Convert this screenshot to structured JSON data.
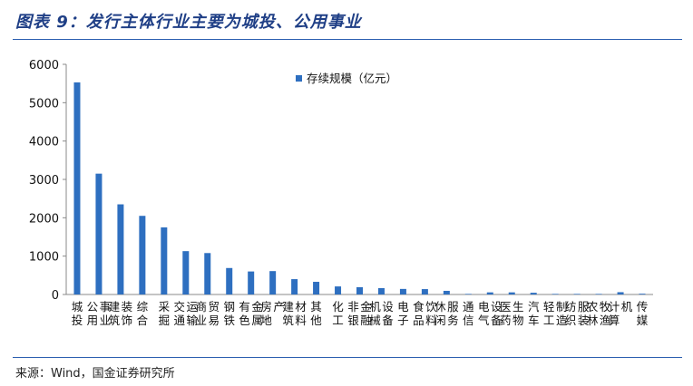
{
  "figure": {
    "title": "图表 9：发行主体行业主要为城投、公用事业",
    "source": "来源：Wind，国金证券研究所"
  },
  "colors": {
    "bar": "#2e6fc0",
    "rule": "#2c5fb0",
    "title": "#1f3f86"
  },
  "chart_data": {
    "type": "bar",
    "title": "",
    "xlabel": "",
    "ylabel": "",
    "ylim": [
      0,
      6000
    ],
    "yticks": [
      "0",
      "1000",
      "2000",
      "3000",
      "4000",
      "5000",
      "6000"
    ],
    "grid": false,
    "legend_position": "top-right",
    "categories": [
      "城投",
      "公用事业",
      "建筑装饰",
      "综合",
      "采掘",
      "交通运输",
      "商业贸易",
      "钢铁",
      "有色金属",
      "房地产",
      "建筑材料",
      "其他",
      "化工",
      "非银金融",
      "机械设备",
      "电子",
      "食品饮料",
      "休闲服务",
      "通信",
      "电气设备",
      "医药生物",
      "汽车",
      "轻工制造",
      "纺织服装",
      "农林牧渔",
      "计算机",
      "传媒"
    ],
    "series": [
      {
        "name": "存续规模（亿元）",
        "values": [
          5530,
          3150,
          2350,
          2050,
          1750,
          1130,
          1080,
          690,
          600,
          610,
          400,
          330,
          210,
          190,
          165,
          145,
          140,
          95,
          15,
          55,
          55,
          45,
          15,
          15,
          15,
          60,
          20
        ]
      }
    ]
  }
}
